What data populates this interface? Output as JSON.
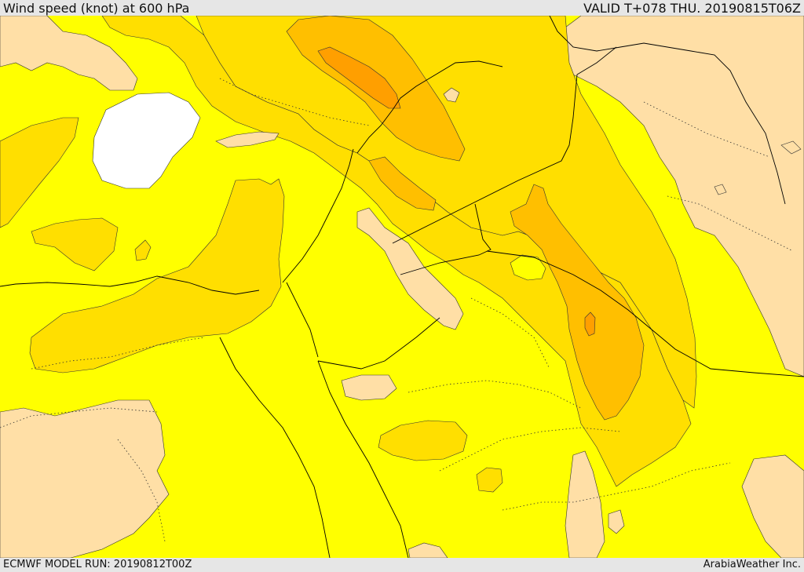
{
  "header": {
    "title": "Wind speed (knot) at 600 hPa",
    "valid": "VALID T+078 THU. 20190815T06Z"
  },
  "footer": {
    "model_run": "ECMWF MODEL RUN: 20190812T00Z",
    "credit": "ArabiaWeather Inc."
  },
  "map": {
    "field": "wind speed",
    "level": "600 hPa",
    "colors": {
      "background": "#ffff00",
      "calm_band": "#ffdfa6",
      "band_2": "#ffdf00",
      "band_3": "#ffbf00",
      "band_4": "#ff9f00",
      "water": "#ffffff",
      "frame": "#e6e6e6"
    }
  }
}
